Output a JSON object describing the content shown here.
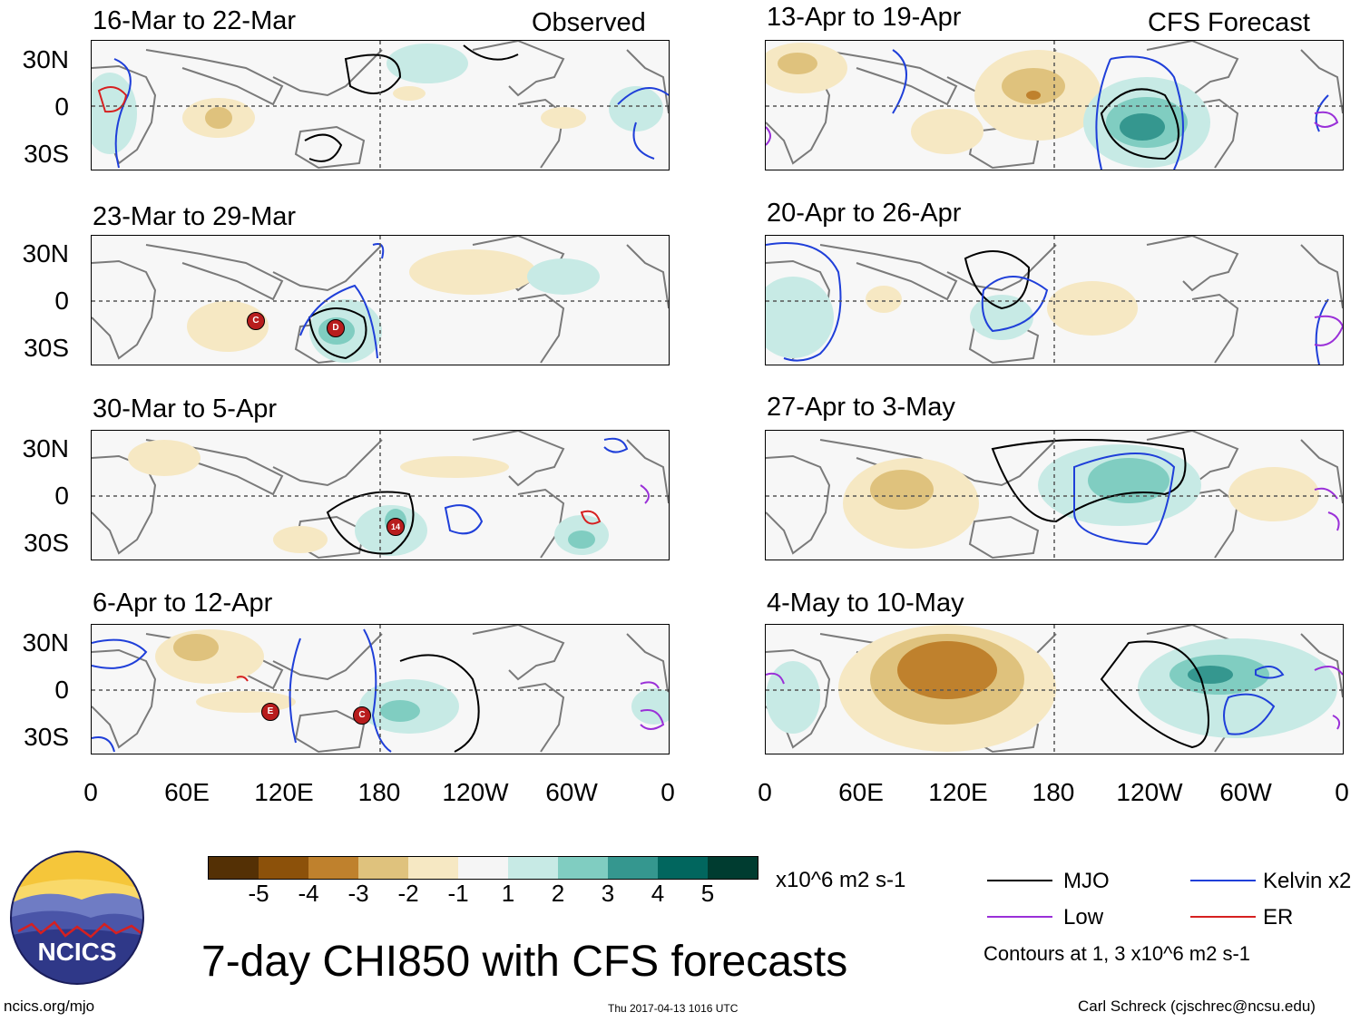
{
  "header": {
    "left_label": "Observed",
    "right_label": "CFS Forecast"
  },
  "panels": {
    "left": [
      "16-Mar to 22-Mar",
      "23-Mar to 29-Mar",
      "30-Mar to 5-Apr",
      "6-Apr to 12-Apr"
    ],
    "right": [
      "13-Apr to 19-Apr",
      "20-Apr to 26-Apr",
      "27-Apr to 3-May",
      "4-May to 10-May"
    ]
  },
  "axes": {
    "y_labels": [
      "30N",
      "0",
      "30S"
    ],
    "x_labels": [
      "0",
      "60E",
      "120E",
      "180",
      "120W",
      "60W",
      "0"
    ]
  },
  "storms": [
    {
      "panel": "left-2",
      "label": "C"
    },
    {
      "panel": "left-2",
      "label": "D"
    },
    {
      "panel": "left-3",
      "label": "14"
    },
    {
      "panel": "left-4",
      "label": "E"
    },
    {
      "panel": "left-4",
      "label": "C"
    }
  ],
  "colorbar": {
    "labels": [
      "-5",
      "-4",
      "-3",
      "-2",
      "-1",
      "1",
      "2",
      "3",
      "4",
      "5"
    ],
    "colors": [
      "#543005",
      "#8c510a",
      "#bf812d",
      "#dfc27d",
      "#f6e8c3",
      "#f5f5f5",
      "#c7eae5",
      "#80cdc1",
      "#35978f",
      "#01665e",
      "#003c30"
    ],
    "units": "x10^6 m2 s-1"
  },
  "legend": {
    "items": [
      {
        "label": "MJO",
        "color": "#000000"
      },
      {
        "label": "Kelvin x2",
        "color": "#1f3fd9"
      },
      {
        "label": "Low",
        "color": "#9a30d8"
      },
      {
        "label": "ER",
        "color": "#d62020"
      }
    ],
    "contour_note": "Contours at 1, 3 x10^6 m2 s-1"
  },
  "logo": {
    "text": "NCICS"
  },
  "footer": {
    "title": "7-day CHI850 with CFS forecasts",
    "url": "ncics.org/mjo",
    "timestamp": "Thu 2017-04-13 1016 UTC",
    "author": "Carl Schreck (cjschrec@ncsu.edu)"
  }
}
